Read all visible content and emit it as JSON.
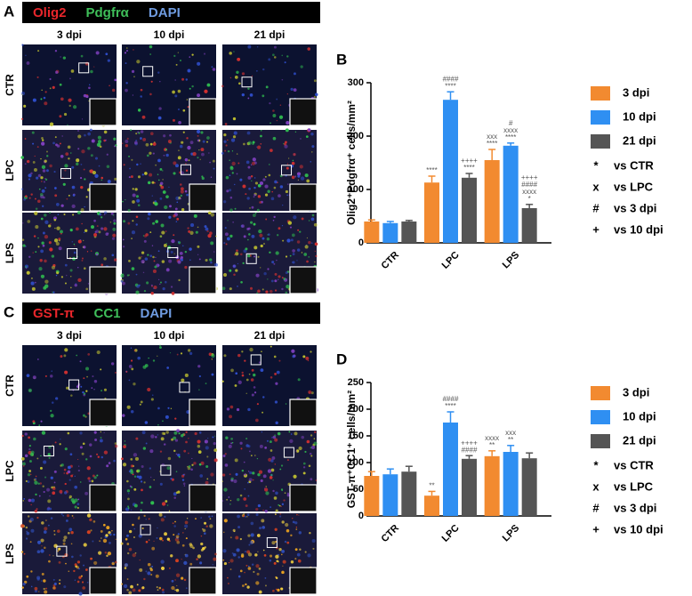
{
  "figure": [
    {
      "letter": "A",
      "stains": [
        {
          "text": "Olig2",
          "color": "#e8262b"
        },
        {
          "text": "Pdgfrα",
          "color": "#3fbf5a"
        },
        {
          "text": "DAPI",
          "color": "#6f9be0"
        }
      ],
      "columns": [
        "3 dpi",
        "10 dpi",
        "21 dpi"
      ],
      "rows": [
        "CTR",
        "LPC",
        "LPS"
      ]
    },
    {
      "letter": "C",
      "stains": [
        {
          "text": "GST-π",
          "color": "#e8262b"
        },
        {
          "text": "CC1",
          "color": "#3fbf5a"
        },
        {
          "text": "DAPI",
          "color": "#6f9be0"
        }
      ],
      "columns": [
        "3 dpi",
        "10 dpi",
        "21 dpi"
      ],
      "rows": [
        "CTR",
        "LPC",
        "LPS"
      ]
    }
  ],
  "chart_data": [
    {
      "type": "bar",
      "letter": "B",
      "ylabel": "Olig2⁺Pdgfrα⁺ cells/mm²",
      "categories": [
        "CTR",
        "LPC",
        "LPS"
      ],
      "ylim": [
        0,
        300
      ],
      "yticks": [
        0,
        100,
        200,
        300
      ],
      "series": [
        {
          "name": "3 dpi",
          "color": "#f28a30",
          "values": [
            40,
            113,
            155
          ],
          "errors": [
            3,
            12,
            20
          ],
          "annotations": [
            null,
            [
              "****"
            ],
            [
              "xxx",
              "****"
            ]
          ]
        },
        {
          "name": "10 dpi",
          "color": "#2f8ff2",
          "values": [
            37,
            268,
            182
          ],
          "errors": [
            3,
            15,
            5
          ],
          "annotations": [
            null,
            [
              "####",
              "****"
            ],
            [
              "#",
              "xxxx",
              "****"
            ]
          ]
        },
        {
          "name": "21 dpi",
          "color": "#555555",
          "values": [
            40,
            122,
            65
          ],
          "errors": [
            2,
            8,
            7
          ],
          "annotations": [
            null,
            [
              "++++",
              "****"
            ],
            [
              "++++",
              "####",
              "xxxx",
              "*"
            ]
          ]
        }
      ],
      "key": [
        {
          "symbol": "*",
          "text": "vs CTR"
        },
        {
          "symbol": "x",
          "text": "vs LPC"
        },
        {
          "symbol": "#",
          "text": "vs 3 dpi"
        },
        {
          "symbol": "+",
          "text": "vs 10 dpi"
        }
      ]
    },
    {
      "type": "bar",
      "letter": "D",
      "ylabel": "GST-π⁺CC1⁺ cells/mm²",
      "categories": [
        "CTR",
        "LPC",
        "LPS"
      ],
      "ylim": [
        0,
        250
      ],
      "yticks": [
        0,
        50,
        100,
        150,
        200,
        250
      ],
      "series": [
        {
          "name": "3 dpi",
          "color": "#f28a30",
          "values": [
            75,
            38,
            112
          ],
          "errors": [
            8,
            8,
            10
          ],
          "annotations": [
            null,
            [
              "**"
            ],
            [
              "xxxx",
              "**"
            ]
          ]
        },
        {
          "name": "10 dpi",
          "color": "#2f8ff2",
          "values": [
            78,
            175,
            120
          ],
          "errors": [
            10,
            20,
            12
          ],
          "annotations": [
            null,
            [
              "####",
              "****"
            ],
            [
              "xxx",
              "**"
            ]
          ]
        },
        {
          "name": "21 dpi",
          "color": "#555555",
          "values": [
            83,
            107,
            108
          ],
          "errors": [
            10,
            6,
            10
          ],
          "annotations": [
            null,
            [
              "++++",
              "####"
            ],
            null
          ]
        }
      ],
      "key": [
        {
          "symbol": "*",
          "text": "vs CTR"
        },
        {
          "symbol": "x",
          "text": "vs LPC"
        },
        {
          "symbol": "#",
          "text": "vs 3 dpi"
        },
        {
          "symbol": "+",
          "text": "vs 10 dpi"
        }
      ]
    }
  ]
}
